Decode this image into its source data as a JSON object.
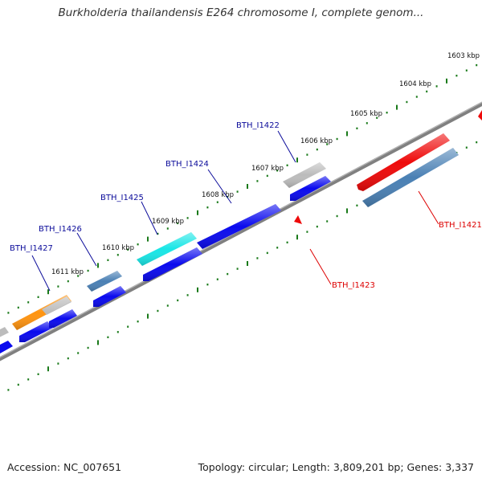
{
  "title": "Burkholderia thailandensis E264 chromosome I, complete genom...",
  "footer": {
    "accession": "Accession: NC_007651",
    "summary": "Topology: circular; Length: 3,809,201 bp; Genes: 3,337"
  },
  "colors": {
    "backbone": "#808080",
    "ruler_tick": "#1a7a1a",
    "forward_label": "#0b0b9a",
    "reverse_label": "#dd0000",
    "blue_gene": "#0a0aee",
    "steel_gene": "#4a80b4",
    "cyan_gene": "#19e6e6",
    "orange_gene": "#ff9410",
    "gray_gene": "#bcbcbc",
    "red_gene": "#ee0a0a"
  },
  "ruler_labels": [
    "1603 kbp",
    "1604 kbp",
    "1605 kbp",
    "1606 kbp",
    "1607 kbp",
    "1608 kbp",
    "1609 kbp",
    "1610 kbp",
    "1611 kbp"
  ],
  "forward_gene_labels": [
    "BTH_I1422",
    "BTH_I1424",
    "BTH_I1425",
    "BTH_I1426",
    "BTH_I1427"
  ],
  "reverse_gene_labels": [
    "BTH_I1421",
    "BTH_I1423"
  ]
}
